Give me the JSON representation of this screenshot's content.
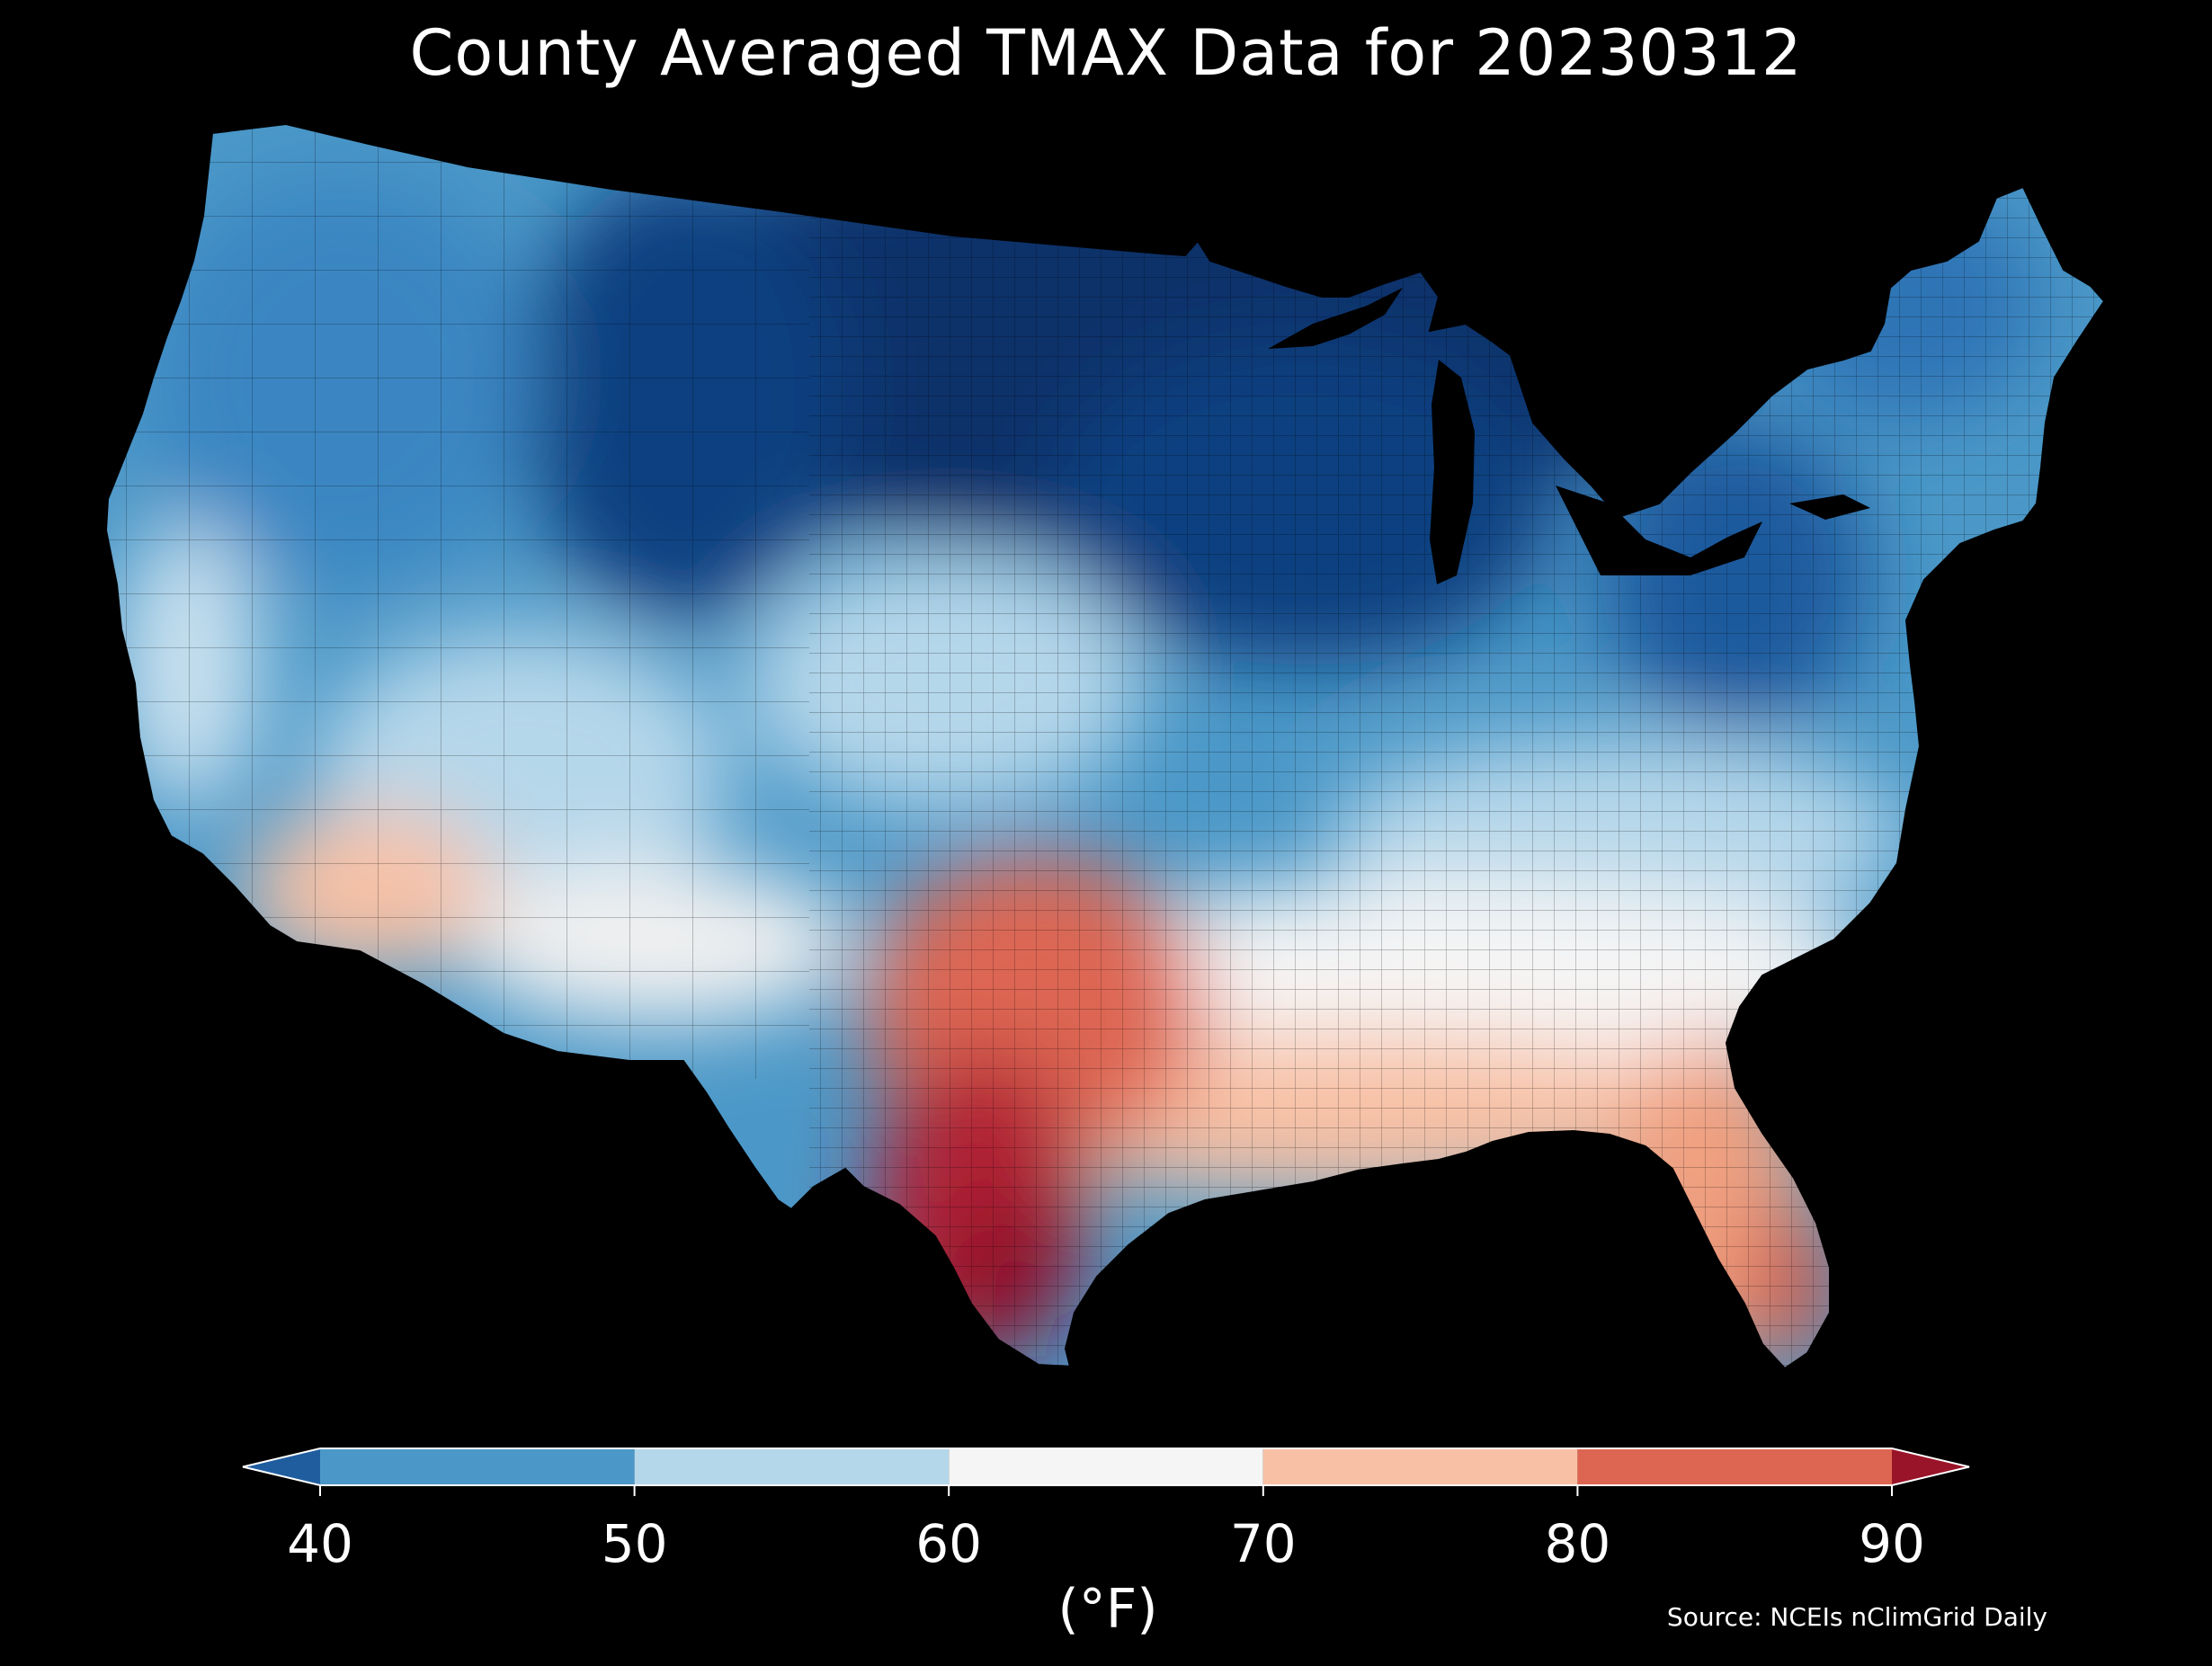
{
  "title": "County Averaged TMAX Data for 20230312",
  "colorbar": {
    "ticks": [
      "40",
      "50",
      "60",
      "70",
      "80",
      "90"
    ],
    "units": "(°F)",
    "bins": [
      {
        "label": "<40",
        "color": "#1f5d9f"
      },
      {
        "label": "40-50",
        "color": "#4b98c8"
      },
      {
        "label": "50-60",
        "color": "#b5d7ea"
      },
      {
        "label": "60-70",
        "color": "#f5f5f5"
      },
      {
        "label": "70-80",
        "color": "#f8c1a5"
      },
      {
        "label": "80-90",
        "color": "#dd6652"
      },
      {
        "label": ">90",
        "color": "#9a1429"
      }
    ]
  },
  "source": "Source: NCEIs nClimGrid Daily",
  "palette": {
    "deep_blue": "#08306b",
    "blue": "#2d6fb5",
    "mid_blue": "#4b98c8",
    "light_blue": "#b5d7ea",
    "white": "#f5f5f5",
    "peach": "#f8c1a5",
    "red": "#dd6652",
    "dark_red": "#9a1429"
  }
}
